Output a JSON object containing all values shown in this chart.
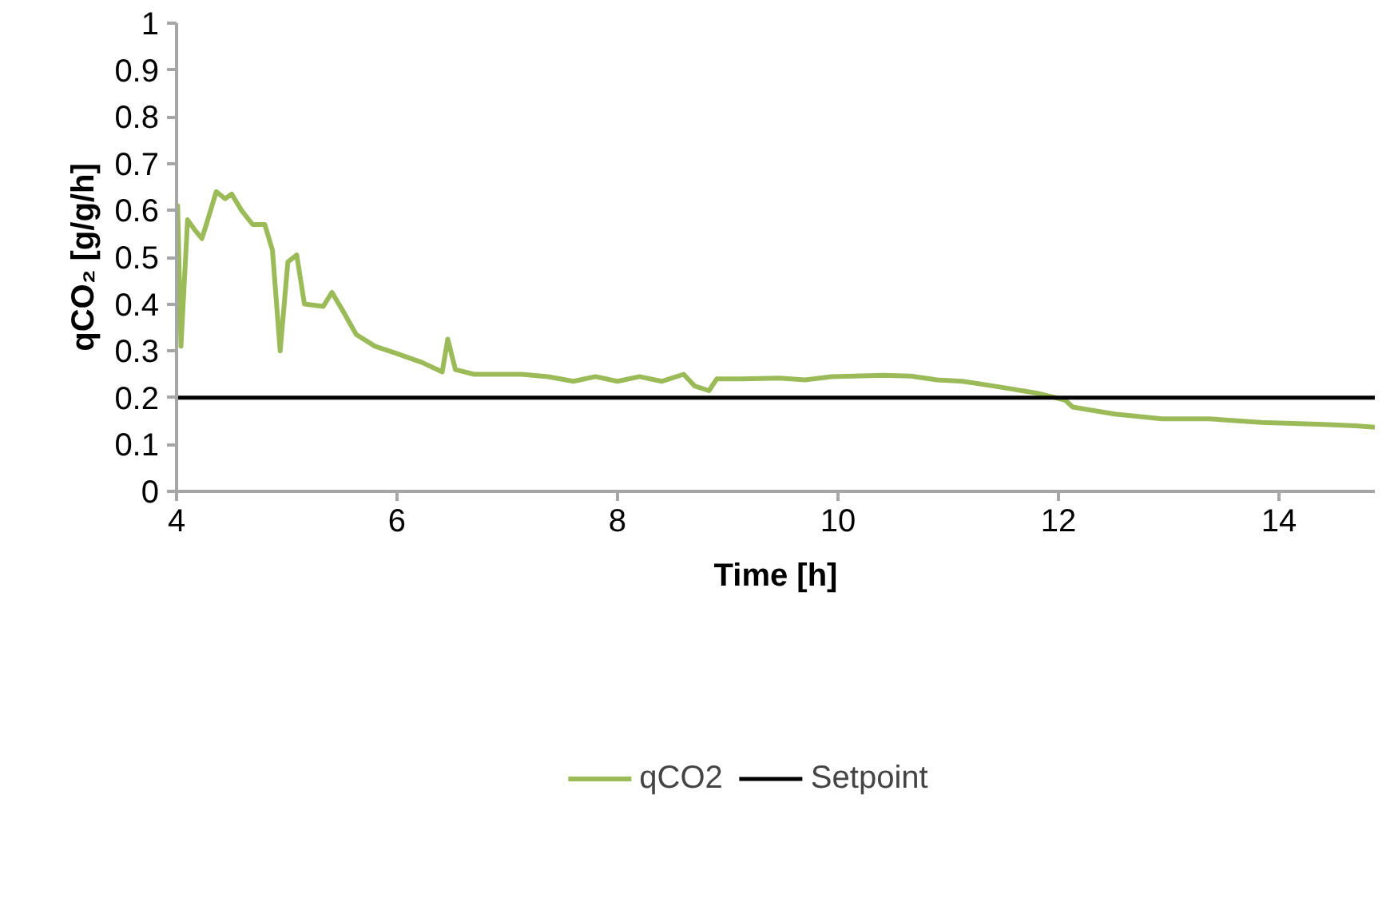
{
  "chart_data": {
    "type": "line",
    "xlabel": "Time [h]",
    "ylabel": "qCO₂ [g/g/h]",
    "xlim": [
      4,
      14.87
    ],
    "xticks": [
      4,
      6,
      8,
      10,
      12,
      14
    ],
    "ylim": [
      0,
      1
    ],
    "yticks": [
      0,
      0.1,
      0.2,
      0.3,
      0.4,
      0.5,
      0.6,
      0.7,
      0.8,
      0.9,
      1
    ],
    "grid": false,
    "legend": "bottom",
    "marker": "none",
    "line_style": "solid",
    "series": [
      {
        "name": "qCO2",
        "color": "#9bbb59",
        "x": [
          4.0,
          4.01,
          4.04,
          4.1,
          4.16,
          4.23,
          4.27,
          4.36,
          4.44,
          4.5,
          4.59,
          4.69,
          4.8,
          4.87,
          4.94,
          5.01,
          5.09,
          5.16,
          5.33,
          5.41,
          5.51,
          5.63,
          5.8,
          5.99,
          6.23,
          6.41,
          6.46,
          6.53,
          6.7,
          7.13,
          7.37,
          7.6,
          7.8,
          8.0,
          8.2,
          8.4,
          8.6,
          8.7,
          8.83,
          8.9,
          9.13,
          9.47,
          9.7,
          9.94,
          10.41,
          10.66,
          10.9,
          11.13,
          11.41,
          11.8,
          12.06,
          12.13,
          12.51,
          12.94,
          13.37,
          13.84,
          14.41,
          14.7,
          14.87
        ],
        "values": [
          0.5,
          0.61,
          0.31,
          0.58,
          0.56,
          0.54,
          0.57,
          0.64,
          0.625,
          0.635,
          0.6,
          0.57,
          0.57,
          0.515,
          0.3,
          0.49,
          0.505,
          0.4,
          0.395,
          0.425,
          0.385,
          0.335,
          0.31,
          0.295,
          0.275,
          0.255,
          0.325,
          0.26,
          0.25,
          0.25,
          0.245,
          0.235,
          0.245,
          0.235,
          0.245,
          0.235,
          0.25,
          0.225,
          0.215,
          0.24,
          0.24,
          0.242,
          0.238,
          0.245,
          0.248,
          0.246,
          0.238,
          0.235,
          0.225,
          0.21,
          0.195,
          0.18,
          0.165,
          0.155,
          0.155,
          0.147,
          0.143,
          0.14,
          0.137
        ]
      },
      {
        "name": "Setpoint",
        "color": "#000000",
        "x": [
          4,
          14.87
        ],
        "values": [
          0.2,
          0.2
        ]
      }
    ]
  }
}
